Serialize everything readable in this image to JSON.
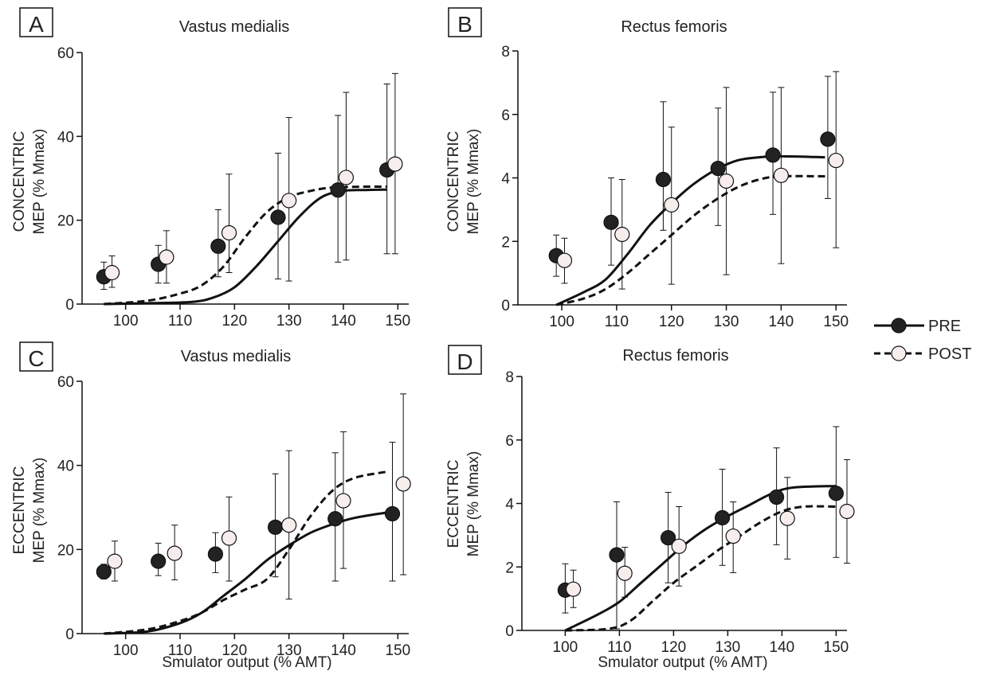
{
  "legend": {
    "items": [
      {
        "label": "PRE",
        "marker": "filled",
        "line": "solid"
      },
      {
        "label": "POST",
        "marker": "open",
        "line": "dashed"
      }
    ]
  },
  "colors": {
    "pre_fill": "#222222",
    "post_fill": "#f7eded",
    "line": "#111111"
  },
  "chart_data": [
    {
      "type": "scatter",
      "panel": "A",
      "title": "Vastus medialis",
      "ylabel_line1": "CONCENTRIC",
      "ylabel_line2": "MEP (% Mmax)",
      "xlabel": "",
      "xlim": [
        92,
        152
      ],
      "ylim": [
        0,
        60
      ],
      "xticks": [
        100,
        110,
        120,
        130,
        140,
        150
      ],
      "yticks": [
        0,
        20,
        40,
        60
      ],
      "series": [
        {
          "name": "PRE",
          "x": [
            96,
            106,
            117,
            128,
            139,
            148
          ],
          "y": [
            6.5,
            9.5,
            13.8,
            20.7,
            27.2,
            32
          ],
          "err_low": [
            3.5,
            5,
            6.5,
            6,
            10,
            12
          ],
          "err_high": [
            10,
            14,
            22.5,
            36,
            45,
            52.5
          ],
          "curve": [
            [
              96,
              0
            ],
            [
              104,
              0.2
            ],
            [
              112,
              0.5
            ],
            [
              116,
              1.5
            ],
            [
              120,
              4
            ],
            [
              124,
              9
            ],
            [
              128,
              15
            ],
            [
              132,
              21
            ],
            [
              136,
              25.5
            ],
            [
              140,
              27
            ],
            [
              144,
              27.2
            ],
            [
              148,
              27.3
            ]
          ]
        },
        {
          "name": "POST",
          "x": [
            97.5,
            107.5,
            119,
            130,
            140.5,
            149.5
          ],
          "y": [
            7.5,
            11.2,
            17,
            24.7,
            30.2,
            33.4
          ],
          "err_low": [
            4,
            5,
            7.5,
            5.5,
            10.5,
            12
          ],
          "err_high": [
            11.5,
            17.5,
            31,
            44.5,
            50.5,
            55
          ],
          "curve": [
            [
              96,
              0
            ],
            [
              104,
              0.8
            ],
            [
              110,
              2.5
            ],
            [
              114,
              4.5
            ],
            [
              118,
              9
            ],
            [
              122,
              16
            ],
            [
              126,
              22
            ],
            [
              130,
              25.5
            ],
            [
              134,
              27
            ],
            [
              138,
              27.8
            ],
            [
              144,
              28
            ],
            [
              148,
              28
            ]
          ]
        }
      ]
    },
    {
      "type": "scatter",
      "panel": "B",
      "title": "Rectus femoris",
      "ylabel_line1": "CONCENTRIC",
      "ylabel_line2": "MEP (% Mmax)",
      "xlabel": "",
      "xlim": [
        92,
        152
      ],
      "ylim": [
        0,
        8
      ],
      "xticks": [
        100,
        110,
        120,
        130,
        140,
        150
      ],
      "yticks": [
        0,
        2,
        4,
        6,
        8
      ],
      "series": [
        {
          "name": "PRE",
          "x": [
            99,
            109,
            118.5,
            128.5,
            138.5,
            148.5
          ],
          "y": [
            1.55,
            2.6,
            3.95,
            4.3,
            4.72,
            5.22
          ],
          "err_low": [
            0.9,
            1.25,
            2.35,
            2.5,
            2.85,
            3.35
          ],
          "err_high": [
            2.2,
            4,
            6.4,
            6.2,
            6.7,
            7.2
          ],
          "curve": [
            [
              99,
              0
            ],
            [
              104,
              0.4
            ],
            [
              108,
              0.8
            ],
            [
              112,
              1.6
            ],
            [
              116,
              2.5
            ],
            [
              120,
              3.2
            ],
            [
              124,
              3.8
            ],
            [
              128,
              4.25
            ],
            [
              132,
              4.55
            ],
            [
              136,
              4.65
            ],
            [
              140,
              4.68
            ],
            [
              148,
              4.65
            ]
          ]
        },
        {
          "name": "POST",
          "x": [
            100.5,
            111,
            120,
            130,
            140,
            150
          ],
          "y": [
            1.4,
            2.22,
            3.15,
            3.9,
            4.08,
            4.55
          ],
          "err_low": [
            0.68,
            0.5,
            0.65,
            0.95,
            1.3,
            1.8
          ],
          "err_high": [
            2.1,
            3.95,
            5.6,
            6.85,
            6.85,
            7.35
          ],
          "curve": [
            [
              99,
              0
            ],
            [
              104,
              0.2
            ],
            [
              108,
              0.5
            ],
            [
              112,
              1
            ],
            [
              116,
              1.6
            ],
            [
              120,
              2.2
            ],
            [
              124,
              2.8
            ],
            [
              128,
              3.3
            ],
            [
              132,
              3.7
            ],
            [
              136,
              3.95
            ],
            [
              140,
              4.05
            ],
            [
              148,
              4.05
            ]
          ]
        }
      ]
    },
    {
      "type": "scatter",
      "panel": "C",
      "title": "Vastus medialis",
      "ylabel_line1": "ECCENTRIC",
      "ylabel_line2": "MEP (% Mmax)",
      "xlabel": "Smulator output (% AMT)",
      "xlim": [
        92,
        152
      ],
      "ylim": [
        0,
        60
      ],
      "xticks": [
        100,
        110,
        120,
        130,
        140,
        150
      ],
      "yticks": [
        0,
        20,
        40,
        60
      ],
      "series": [
        {
          "name": "PRE",
          "x": [
            96,
            106,
            116.5,
            127.5,
            138.5,
            149
          ],
          "y": [
            14.7,
            17.2,
            18.9,
            25.3,
            27.3,
            28.5
          ],
          "err_low": [
            13,
            13.8,
            14.5,
            13.5,
            12.5,
            12.5
          ],
          "err_high": [
            16.5,
            21.5,
            24,
            38,
            43,
            45.5
          ],
          "curve": [
            [
              96,
              0
            ],
            [
              104,
              0.5
            ],
            [
              110,
              2.5
            ],
            [
              114,
              5
            ],
            [
              118,
              9
            ],
            [
              122,
              13
            ],
            [
              126,
              17.5
            ],
            [
              130,
              21
            ],
            [
              134,
              24
            ],
            [
              138,
              26
            ],
            [
              142,
              27.5
            ],
            [
              148,
              28.8
            ]
          ]
        },
        {
          "name": "POST",
          "x": [
            98,
            109,
            119,
            130,
            140,
            151
          ],
          "y": [
            17.2,
            19.1,
            22.7,
            25.8,
            31.6,
            35.6
          ],
          "err_low": [
            12.5,
            12.8,
            12.5,
            8.2,
            15.5,
            14
          ],
          "err_high": [
            22,
            25.8,
            32.5,
            43.5,
            48,
            57
          ],
          "curve": [
            [
              96,
              0
            ],
            [
              104,
              1
            ],
            [
              110,
              3
            ],
            [
              114,
              5
            ],
            [
              118,
              8
            ],
            [
              122,
              10.5
            ],
            [
              126,
              13
            ],
            [
              130,
              20
            ],
            [
              134,
              28
            ],
            [
              138,
              34
            ],
            [
              142,
              37
            ],
            [
              148,
              38.5
            ]
          ]
        }
      ]
    },
    {
      "type": "scatter",
      "panel": "D",
      "title": "Rectus femoris",
      "ylabel_line1": "ECCENTRIC",
      "ylabel_line2": "MEP (% Mmax)",
      "xlabel": "Smulator output (% AMT)",
      "xlim": [
        92,
        152
      ],
      "ylim": [
        0,
        8
      ],
      "xticks": [
        100,
        110,
        120,
        130,
        140,
        150
      ],
      "yticks": [
        0,
        2,
        4,
        6,
        8
      ],
      "series": [
        {
          "name": "PRE",
          "x": [
            100,
            109.5,
            119,
            129,
            139,
            150
          ],
          "y": [
            1.27,
            2.38,
            2.92,
            3.55,
            4.2,
            4.32
          ],
          "err_low": [
            0.55,
            0.05,
            1.5,
            2.05,
            2.7,
            2.3
          ],
          "err_high": [
            2.1,
            4.05,
            4.35,
            5.08,
            5.75,
            6.42
          ],
          "curve": [
            [
              100,
              0
            ],
            [
              106,
              0.5
            ],
            [
              110,
              0.9
            ],
            [
              114,
              1.5
            ],
            [
              118,
              2.1
            ],
            [
              122,
              2.7
            ],
            [
              126,
              3.2
            ],
            [
              130,
              3.6
            ],
            [
              134,
              3.95
            ],
            [
              138,
              4.3
            ],
            [
              142,
              4.5
            ],
            [
              150,
              4.55
            ]
          ]
        },
        {
          "name": "POST",
          "x": [
            101.5,
            111,
            121,
            131,
            141,
            152
          ],
          "y": [
            1.3,
            1.8,
            2.65,
            2.97,
            3.53,
            3.75
          ],
          "err_low": [
            0.72,
            1.05,
            1.4,
            1.82,
            2.25,
            2.12
          ],
          "err_high": [
            1.9,
            2.62,
            3.9,
            4.05,
            4.82,
            5.38
          ],
          "curve": [
            [
              100,
              0
            ],
            [
              108,
              0.05
            ],
            [
              112,
              0.3
            ],
            [
              116,
              0.9
            ],
            [
              120,
              1.5
            ],
            [
              124,
              2
            ],
            [
              128,
              2.5
            ],
            [
              132,
              2.95
            ],
            [
              136,
              3.4
            ],
            [
              140,
              3.75
            ],
            [
              144,
              3.9
            ],
            [
              150,
              3.9
            ]
          ]
        }
      ]
    }
  ]
}
